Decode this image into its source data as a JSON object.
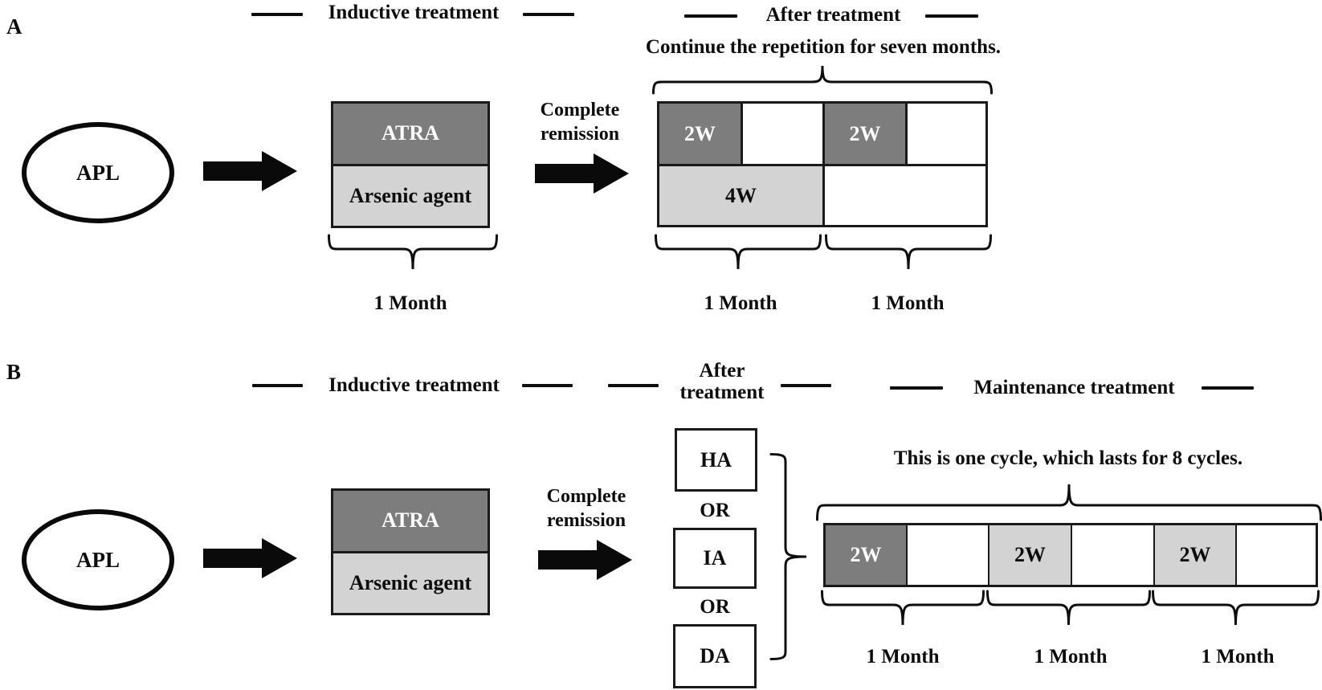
{
  "colors": {
    "dark_gray": "#7d7d7d",
    "light_gray": "#d3d3d3",
    "line_black": "#0d0d0d",
    "background": "#ffffff"
  },
  "panels": {
    "a": {
      "label": "A",
      "header_inductive": "Inductive treatment",
      "header_after": "After treatment",
      "note": "Continue the repetition for seven months.",
      "apl": "APL",
      "box": {
        "top": "ATRA",
        "bottom": "Arsenic agent"
      },
      "box_duration": "1 Month",
      "remission_line1": "Complete",
      "remission_line2": "remission",
      "grid": {
        "cell_2w_1": "2W",
        "cell_2w_2": "2W",
        "cell_4w": "4W"
      },
      "months": [
        "1 Month",
        "1 Month"
      ]
    },
    "b": {
      "label": "B",
      "header_inductive": "Inductive treatment",
      "header_after_line1": "After",
      "header_after_line2": "treatment",
      "header_maintenance": "Maintenance treatment",
      "apl": "APL",
      "box": {
        "top": "ATRA",
        "bottom": "Arsenic agent"
      },
      "remission_line1": "Complete",
      "remission_line2": "remission",
      "or": "OR",
      "options": [
        "HA",
        "IA",
        "DA"
      ],
      "cycle_note": "This is one cycle, which lasts for 8 cycles.",
      "cells": [
        "2W",
        "2W",
        "2W"
      ],
      "months": [
        "1 Month",
        "1 Month",
        "1 Month"
      ]
    }
  }
}
